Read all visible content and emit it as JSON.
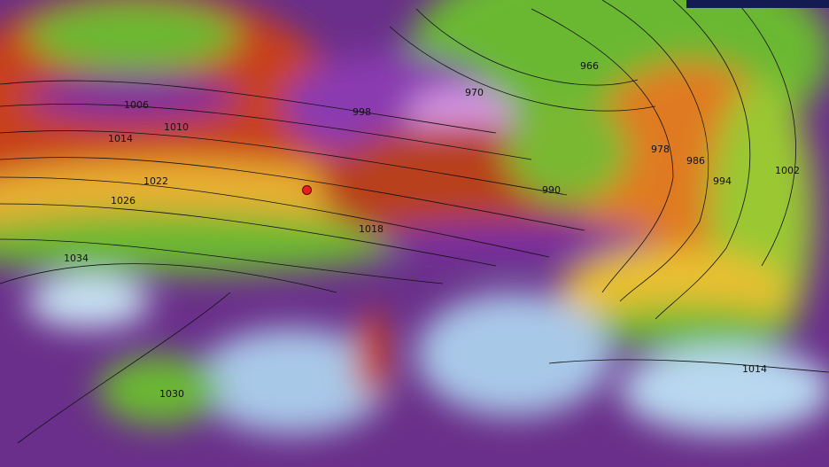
{
  "map": {
    "type": "wind gust and mean sea level pressure",
    "colors": {
      "purple": "#7a2fa0",
      "red": "#c8401a",
      "orange": "#e87a20",
      "yellow": "#e8d030",
      "green": "#6ab830",
      "pale": "#c8e4f4",
      "marker": "#e52020",
      "banner": "#141a52"
    },
    "isobar_labels": [
      "1006",
      "1010",
      "1014",
      "1022",
      "1026",
      "1034",
      "998",
      "970",
      "966",
      "978",
      "986",
      "994",
      "1002",
      "990",
      "1018",
      "1030",
      "1014"
    ],
    "marker": "location-marker"
  }
}
